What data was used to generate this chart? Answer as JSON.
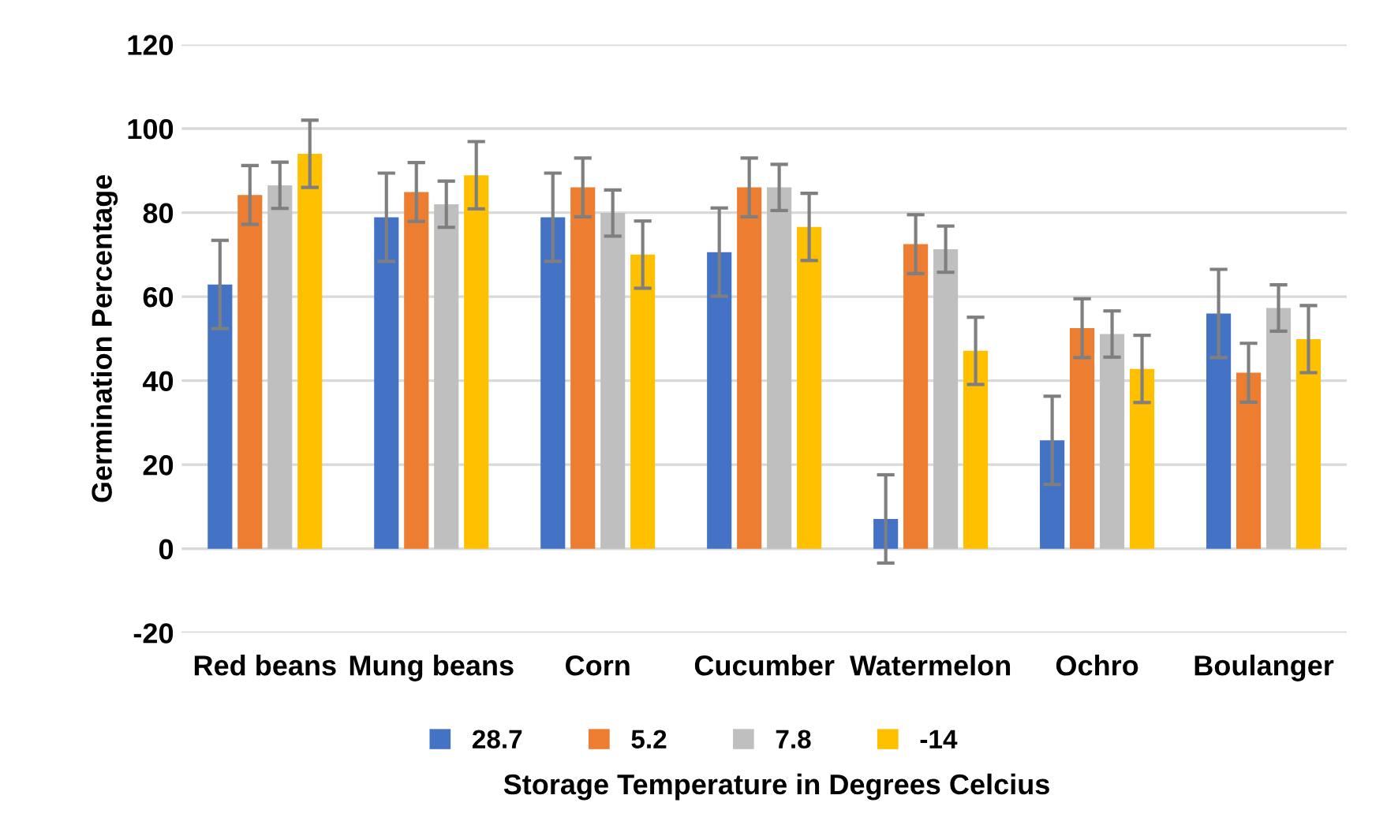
{
  "chart_data": {
    "type": "bar",
    "xlabel": "Storage Temperature in Degrees Celcius",
    "ylabel": "Germination Percentage",
    "categories": [
      "Red beans",
      "Mung beans",
      "Corn",
      "Cucumber",
      "Watermelon",
      "Ochro",
      "Boulanger"
    ],
    "series": [
      {
        "name": "28.7",
        "color": "#4472c4",
        "values": [
          62.9,
          78.9,
          78.9,
          70.6,
          7.1,
          25.8,
          56
        ],
        "errors": [
          10.5,
          10.5,
          10.5,
          10.5,
          10.5,
          10.5,
          10.5
        ]
      },
      {
        "name": "5.2",
        "color": "#ed7d31",
        "values": [
          84.2,
          84.9,
          86,
          86,
          72.5,
          52.5,
          41.9
        ],
        "errors": [
          7,
          7,
          7,
          7,
          7,
          7,
          7
        ]
      },
      {
        "name": "7.8",
        "color": "#bfbfbf",
        "values": [
          86.5,
          82,
          79.9,
          86,
          71.3,
          51.1,
          57.3
        ],
        "errors": [
          5.5,
          5.5,
          5.5,
          5.5,
          5.5,
          5.5,
          5.5
        ]
      },
      {
        "name": "-14",
        "color": "#ffc000",
        "values": [
          94,
          88.9,
          70,
          76.6,
          47.1,
          42.8,
          49.9
        ],
        "errors": [
          8,
          8,
          8,
          8,
          8,
          8,
          8
        ]
      }
    ],
    "ylim": [
      -20,
      120
    ],
    "yticks": [
      -20,
      0,
      20,
      40,
      60,
      80,
      100,
      120
    ],
    "grid": "y",
    "legend": "bottom"
  }
}
